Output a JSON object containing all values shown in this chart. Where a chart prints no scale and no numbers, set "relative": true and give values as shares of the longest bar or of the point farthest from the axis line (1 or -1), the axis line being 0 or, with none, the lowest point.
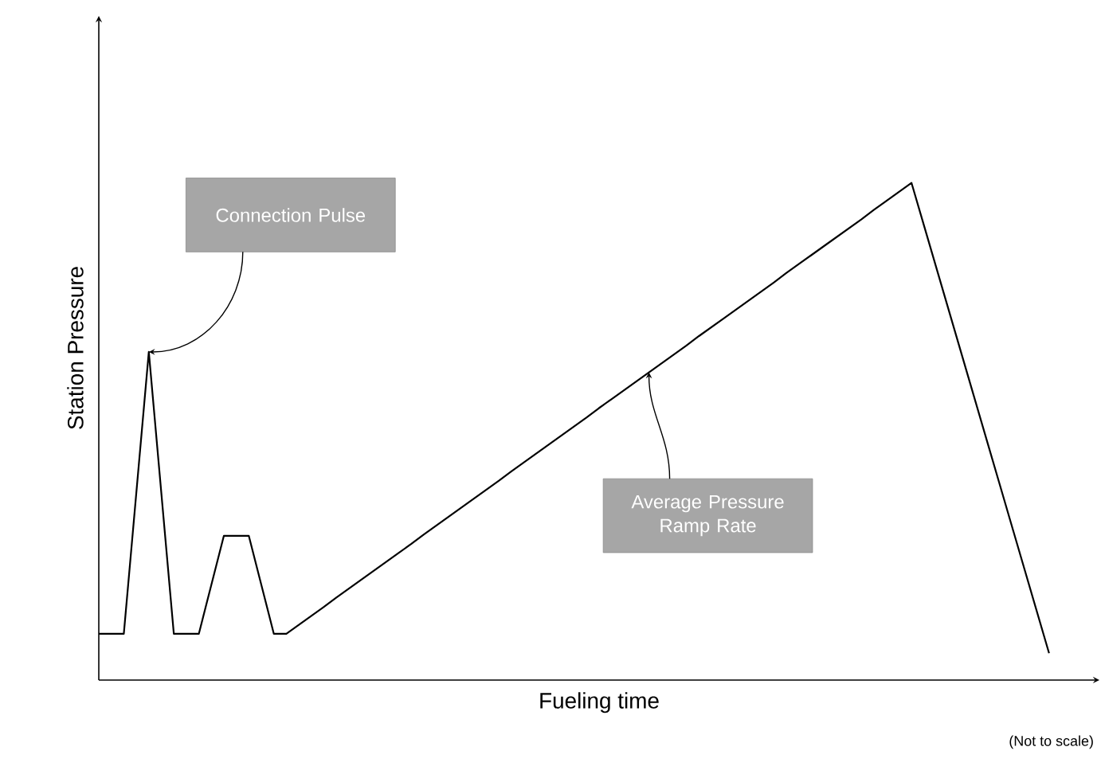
{
  "chart_data": {
    "type": "line",
    "relative": true,
    "xlabel": "Fueling time",
    "ylabel": "Station Pressure",
    "color": "#000000",
    "line_style": "solid",
    "categories": [
      null,
      null,
      null,
      null,
      null,
      null,
      null,
      null,
      null,
      null,
      null,
      null,
      null,
      null,
      null,
      null,
      null,
      null,
      null,
      null,
      null,
      null,
      null,
      null,
      null,
      null,
      null,
      null,
      null,
      null,
      null,
      null,
      null,
      null,
      null,
      null,
      null,
      null,
      null,
      null,
      null,
      null,
      null,
      null,
      null,
      null,
      null,
      null,
      null,
      null,
      null,
      null,
      null,
      null,
      null,
      null,
      null,
      null,
      null,
      null,
      null,
      null,
      null,
      null,
      null,
      null,
      null,
      null,
      null,
      null,
      null,
      null,
      null,
      null,
      null,
      null,
      null
    ],
    "values": [
      0.093,
      0.093,
      0.093,
      0.3765,
      0.66,
      0.3765,
      0.093,
      0.093,
      0.093,
      0.1915,
      0.29,
      0.29,
      0.29,
      0.1915,
      0.093,
      0.093,
      0.111,
      0.129,
      0.147,
      0.166,
      0.184,
      0.202,
      0.22,
      0.238,
      0.256,
      0.274,
      0.293,
      0.311,
      0.329,
      0.347,
      0.365,
      0.383,
      0.401,
      0.42,
      0.438,
      0.456,
      0.474,
      0.492,
      0.51,
      0.528,
      0.547,
      0.565,
      0.583,
      0.601,
      0.619,
      0.637,
      0.655,
      0.673,
      0.692,
      0.71,
      0.728,
      0.746,
      0.764,
      0.782,
      0.8,
      0.819,
      0.837,
      0.855,
      0.873,
      0.891,
      0.909,
      0.927,
      0.946,
      0.964,
      0.982,
      1,
      0.914,
      0.828,
      0.742,
      0.656,
      0.57,
      0.484,
      0.398,
      0.312,
      0.226,
      0.14,
      0.054
    ],
    "annotations": [
      "Connection Pulse",
      "Average Pressure Ramp Rate",
      "(Not to scale)"
    ]
  }
}
